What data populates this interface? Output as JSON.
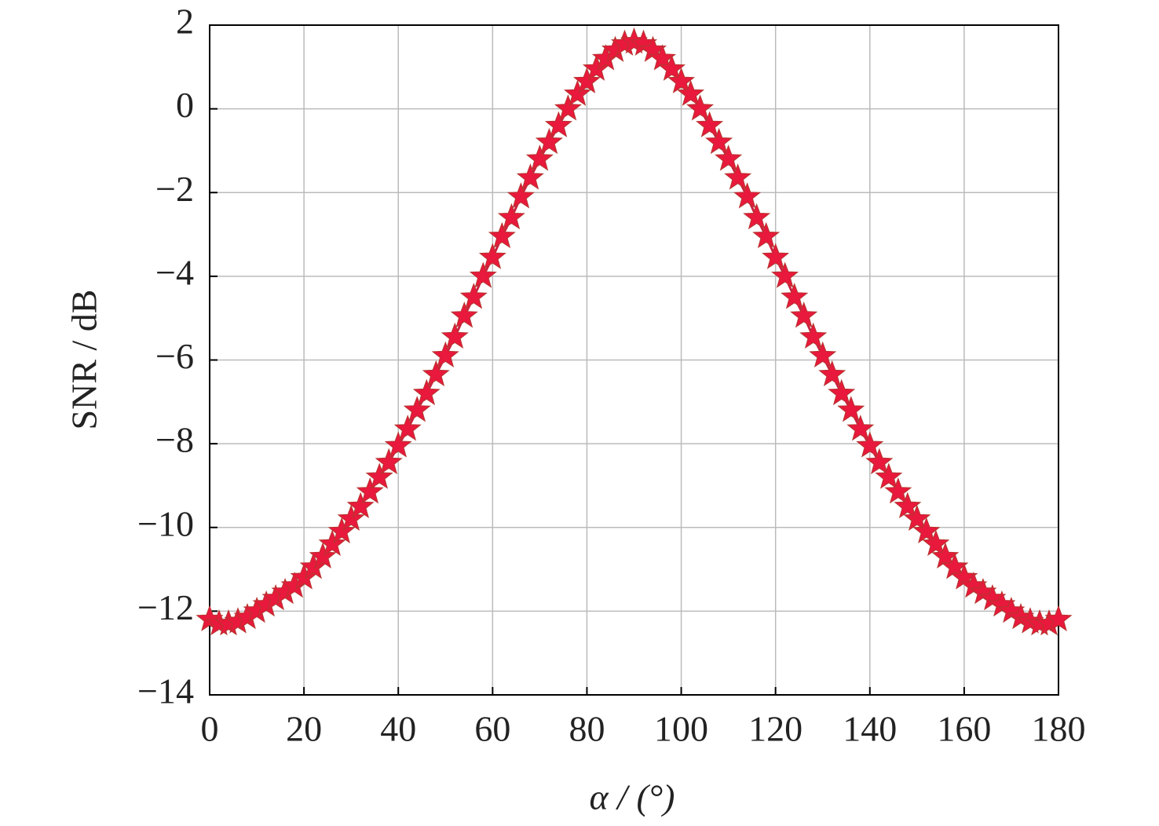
{
  "chart_data": {
    "type": "line",
    "x_label": "α / (°)",
    "y_label": "SNR / dB",
    "x": [
      0,
      2,
      4,
      6,
      8,
      10,
      12,
      14,
      16,
      18,
      20,
      22,
      24,
      26,
      28,
      30,
      32,
      34,
      36,
      38,
      40,
      42,
      44,
      46,
      48,
      50,
      52,
      54,
      56,
      58,
      60,
      62,
      64,
      66,
      68,
      70,
      72,
      74,
      76,
      78,
      80,
      82,
      84,
      86,
      88,
      90,
      92,
      94,
      96,
      98,
      100,
      102,
      104,
      106,
      108,
      110,
      112,
      114,
      116,
      118,
      120,
      122,
      124,
      126,
      128,
      130,
      132,
      134,
      136,
      138,
      140,
      142,
      144,
      146,
      148,
      150,
      152,
      154,
      156,
      158,
      160,
      162,
      164,
      166,
      168,
      170,
      172,
      174,
      176,
      178,
      180
    ],
    "series": [
      {
        "color": "#e8193c",
        "line_color": "#c9213f",
        "marker": "star",
        "values": [
          -12.2,
          -12.3,
          -12.3,
          -12.25,
          -12.15,
          -12.0,
          -11.85,
          -11.7,
          -11.55,
          -11.4,
          -11.2,
          -10.95,
          -10.7,
          -10.4,
          -10.1,
          -9.8,
          -9.5,
          -9.15,
          -8.8,
          -8.45,
          -8.05,
          -7.65,
          -7.2,
          -6.8,
          -6.35,
          -5.9,
          -5.45,
          -4.95,
          -4.5,
          -4.0,
          -3.55,
          -3.05,
          -2.6,
          -2.1,
          -1.65,
          -1.2,
          -0.8,
          -0.4,
          0.0,
          0.35,
          0.65,
          0.95,
          1.2,
          1.4,
          1.55,
          1.6,
          1.55,
          1.4,
          1.2,
          0.95,
          0.65,
          0.35,
          0.0,
          -0.4,
          -0.8,
          -1.2,
          -1.65,
          -2.1,
          -2.6,
          -3.05,
          -3.55,
          -4.0,
          -4.5,
          -4.95,
          -5.45,
          -5.9,
          -6.35,
          -6.8,
          -7.2,
          -7.65,
          -8.05,
          -8.45,
          -8.8,
          -9.15,
          -9.5,
          -9.8,
          -10.1,
          -10.4,
          -10.7,
          -10.95,
          -11.2,
          -11.4,
          -11.55,
          -11.7,
          -11.85,
          -12.0,
          -12.15,
          -12.25,
          -12.3,
          -12.3,
          -12.2
        ]
      }
    ],
    "xlim": [
      0,
      180
    ],
    "xticks": [
      0,
      20,
      40,
      60,
      80,
      100,
      120,
      140,
      160,
      180
    ],
    "ylim": [
      -14,
      2
    ],
    "yticks": [
      {
        "value": -14,
        "label": "−14"
      },
      {
        "value": -12,
        "label": "−12"
      },
      {
        "value": -10,
        "label": "−10"
      },
      {
        "value": -8,
        "label": "−8"
      },
      {
        "value": -6,
        "label": "−6"
      },
      {
        "value": -4,
        "label": "−4"
      },
      {
        "value": -2,
        "label": "−2"
      },
      0,
      2
    ],
    "grid": true
  }
}
